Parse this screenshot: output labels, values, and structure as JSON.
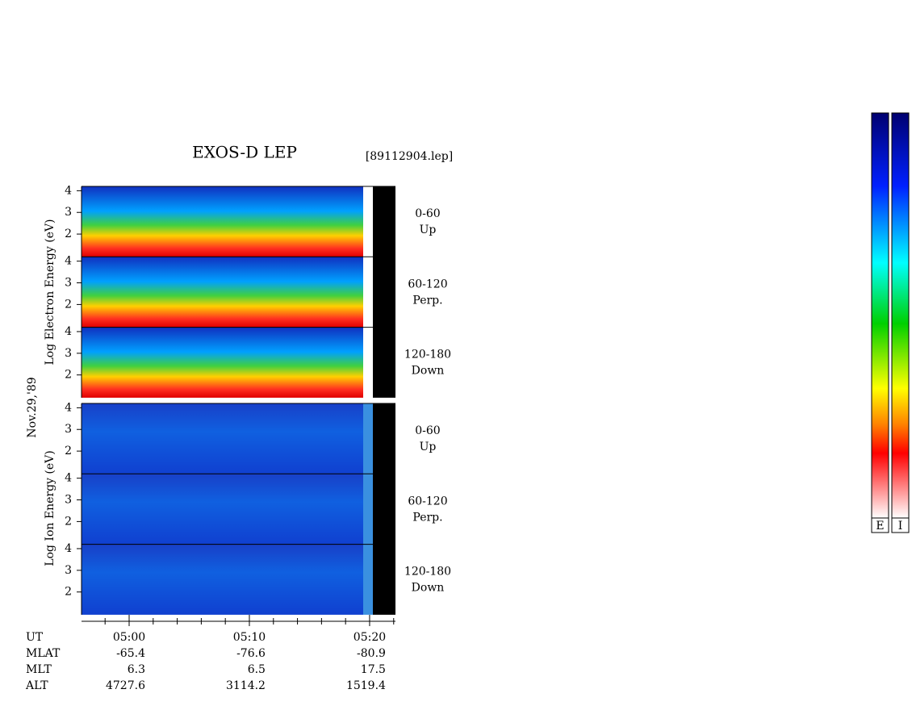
{
  "title": "EXOS-D LEP",
  "file": "[89112904.lep]",
  "date": "Nov.29,'89",
  "electron": {
    "axis_label": "Log Electron Energy (eV)",
    "panels": [
      {
        "angle": "0-60",
        "direction": "Up"
      },
      {
        "angle": "60-120",
        "direction": "Perp."
      },
      {
        "angle": "120-180",
        "direction": "Down"
      }
    ]
  },
  "ion": {
    "axis_label": "Log Ion Energy (eV)",
    "panels": [
      {
        "angle": "0-60",
        "direction": "Up"
      },
      {
        "angle": "60-120",
        "direction": "Perp."
      },
      {
        "angle": "120-180",
        "direction": "Down"
      }
    ]
  },
  "energy_axis": {
    "ylim": [
      0.95,
      4.2
    ],
    "yticks": [
      2,
      3,
      4
    ]
  },
  "time_axis": {
    "xlim": [
      -3.96,
      22.15
    ],
    "xticks": [
      {
        "value": 0,
        "label": "05:00"
      },
      {
        "value": 10,
        "label": "05:10"
      },
      {
        "value": 20,
        "label": "05:20"
      }
    ],
    "minor_ticks": [
      -2,
      2,
      4,
      6,
      8,
      12,
      14,
      16,
      18,
      22
    ]
  },
  "orbit": {
    "rows": [
      {
        "name": "UT"
      },
      {
        "name": "MLAT",
        "values": [
          "-65.4",
          "-76.6",
          "-80.9"
        ]
      },
      {
        "name": "MLT",
        "values": [
          "6.3",
          "6.5",
          "17.5"
        ]
      },
      {
        "name": "ALT",
        "values": [
          "4727.6",
          "3114.2",
          "1519.4"
        ]
      }
    ]
  },
  "colorbars": [
    "E",
    "I"
  ]
}
